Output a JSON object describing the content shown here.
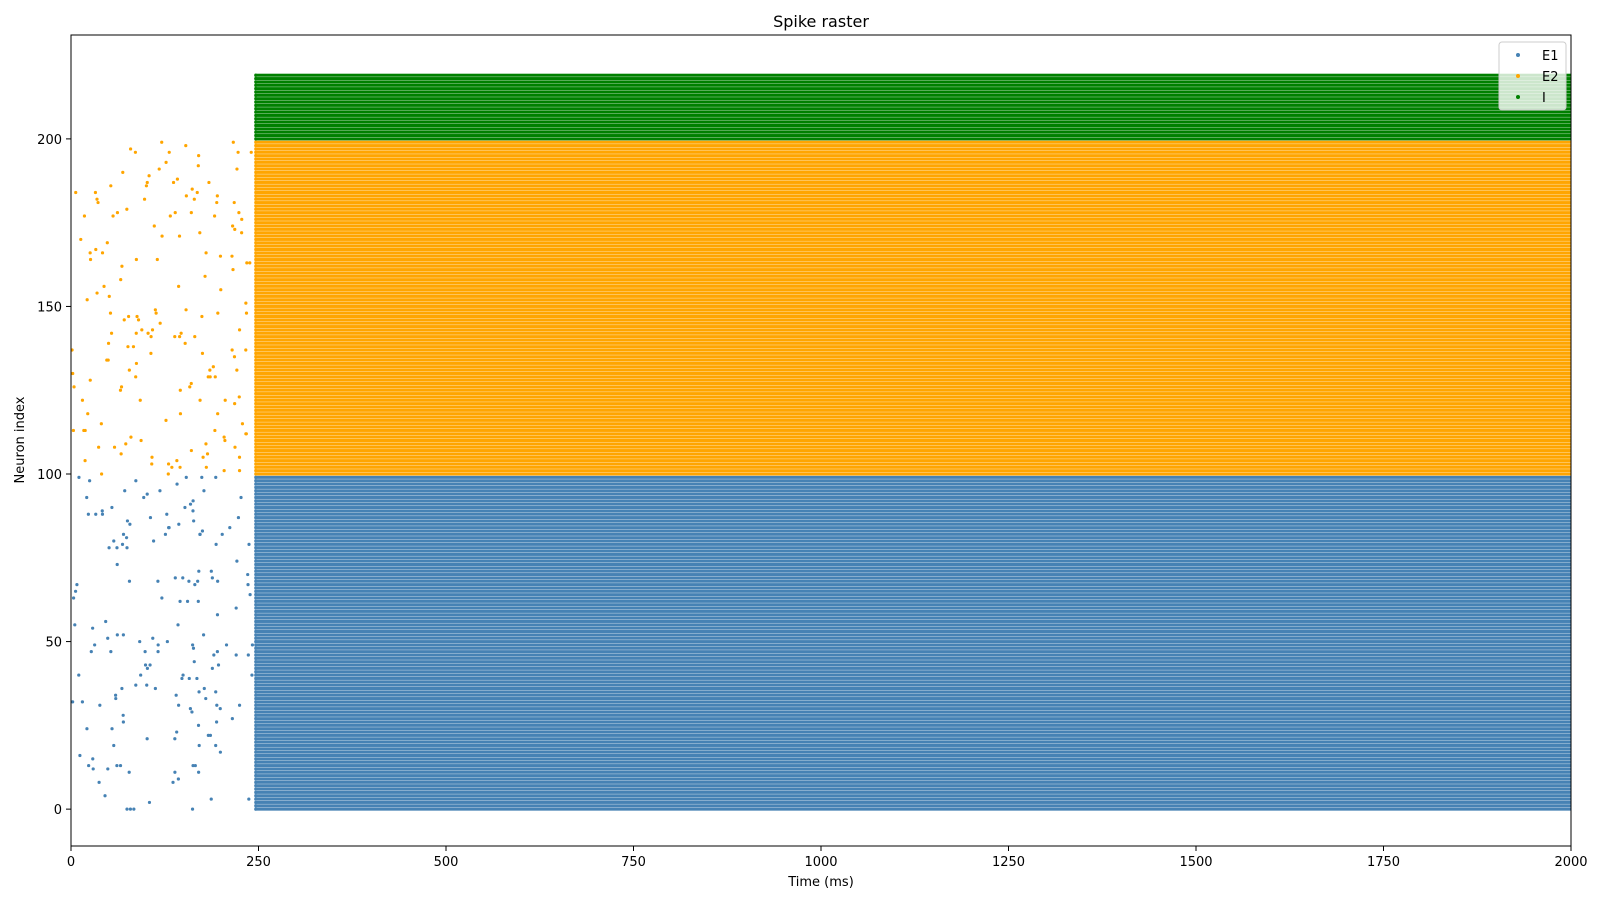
{
  "chart_data": {
    "type": "scatter",
    "title": "Spike raster",
    "xlabel": "Time (ms)",
    "ylabel": "Neuron index",
    "xlim": [
      0,
      2000
    ],
    "ylim": [
      -11,
      231
    ],
    "xticks": [
      0,
      250,
      500,
      750,
      1000,
      1250,
      1500,
      1750,
      2000
    ],
    "yticks": [
      0,
      50,
      100,
      150,
      200
    ],
    "xtick_labels": [
      "0",
      "250",
      "500",
      "750",
      "1000",
      "1250",
      "1500",
      "1750",
      "2000"
    ],
    "ytick_labels": [
      "0",
      "50",
      "100",
      "150",
      "200"
    ],
    "grid": false,
    "legend_position": "upper right",
    "onset_time_ms": 245,
    "series": [
      {
        "name": "E1",
        "color": "#4682b4",
        "neuron_range": [
          0,
          99
        ],
        "sparse_phase": {
          "t_start": 0,
          "t_end": 245,
          "approx_spike_count": 170
        },
        "dense_phase": {
          "t_start": 245,
          "t_end": 2000,
          "description": "every neuron fires continuously"
        }
      },
      {
        "name": "E2",
        "color": "#ffa500",
        "neuron_range": [
          100,
          199
        ],
        "sparse_phase": {
          "t_start": 0,
          "t_end": 245,
          "approx_spike_count": 170
        },
        "dense_phase": {
          "t_start": 245,
          "t_end": 2000,
          "description": "every neuron fires continuously"
        }
      },
      {
        "name": "I",
        "color": "#008000",
        "neuron_range": [
          200,
          219
        ],
        "sparse_phase": {
          "t_start": 0,
          "t_end": 245,
          "approx_spike_count": 0
        },
        "dense_phase": {
          "t_start": 245,
          "t_end": 2000,
          "description": "every neuron fires continuously"
        }
      }
    ]
  }
}
